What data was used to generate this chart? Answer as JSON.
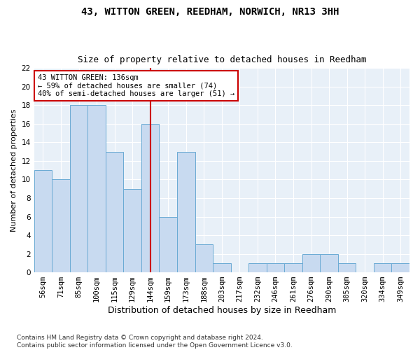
{
  "title1": "43, WITTON GREEN, REEDHAM, NORWICH, NR13 3HH",
  "title2": "Size of property relative to detached houses in Reedham",
  "xlabel": "Distribution of detached houses by size in Reedham",
  "ylabel": "Number of detached properties",
  "categories": [
    "56sqm",
    "71sqm",
    "85sqm",
    "100sqm",
    "115sqm",
    "129sqm",
    "144sqm",
    "159sqm",
    "173sqm",
    "188sqm",
    "203sqm",
    "217sqm",
    "232sqm",
    "246sqm",
    "261sqm",
    "276sqm",
    "290sqm",
    "305sqm",
    "320sqm",
    "334sqm",
    "349sqm"
  ],
  "values": [
    11,
    10,
    18,
    18,
    13,
    9,
    16,
    6,
    13,
    3,
    1,
    0,
    1,
    1,
    1,
    2,
    2,
    1,
    0,
    1,
    1
  ],
  "bar_color": "#c8daf0",
  "bar_edge_color": "#6aaad4",
  "vline_x_index": 6,
  "vline_color": "#cc0000",
  "annotation_text": "43 WITTON GREEN: 136sqm\n← 59% of detached houses are smaller (74)\n40% of semi-detached houses are larger (51) →",
  "annotation_box_color": "#ffffff",
  "annotation_box_edge": "#cc0000",
  "ylim": [
    0,
    22
  ],
  "yticks": [
    0,
    2,
    4,
    6,
    8,
    10,
    12,
    14,
    16,
    18,
    20,
    22
  ],
  "background_color": "#e8f0f8",
  "grid_color": "#ffffff",
  "footer": "Contains HM Land Registry data © Crown copyright and database right 2024.\nContains public sector information licensed under the Open Government Licence v3.0.",
  "title1_fontsize": 10,
  "title2_fontsize": 9,
  "ylabel_fontsize": 8,
  "xlabel_fontsize": 9,
  "tick_fontsize": 7.5,
  "footer_fontsize": 6.5,
  "annotation_fontsize": 7.5
}
